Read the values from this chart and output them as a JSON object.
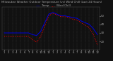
{
  "title": "Milwaukee Weather Outdoor Temperature (vs) Wind Chill (Last 24 Hours)",
  "x_labels": [
    "1",
    "2",
    "3",
    "4",
    "5",
    "6",
    "7",
    "8",
    "9",
    "10",
    "11",
    "12",
    "1",
    "2",
    "3",
    "4",
    "5",
    "6",
    "7",
    "8",
    "9",
    "10",
    "11",
    "12"
  ],
  "temp_color": "#0000dd",
  "wind_chill_color": "#ff0000",
  "background_color": "#111111",
  "plot_bg_color": "#111111",
  "text_color": "#aaaaaa",
  "grid_color": "#555555",
  "temp_values": [
    30,
    30,
    30,
    30,
    30,
    30,
    30,
    28,
    27,
    32,
    42,
    52,
    54,
    52,
    50,
    50,
    49,
    48,
    47,
    44,
    42,
    40,
    35,
    28
  ],
  "wind_chill_values": [
    26,
    26,
    26,
    26,
    26,
    26,
    26,
    22,
    19,
    26,
    38,
    50,
    53,
    51,
    49,
    49,
    48,
    46,
    45,
    42,
    39,
    36,
    28,
    16
  ],
  "ylim": [
    10,
    60
  ],
  "ytick_values": [
    20,
    30,
    40,
    50
  ],
  "ytick_labels": [
    "20",
    "30",
    "40",
    "50"
  ],
  "legend_temp": "Temp",
  "legend_wc": "Wind Chill",
  "title_fontsize": 2.8,
  "tick_fontsize": 2.8,
  "line_width": 0.7
}
